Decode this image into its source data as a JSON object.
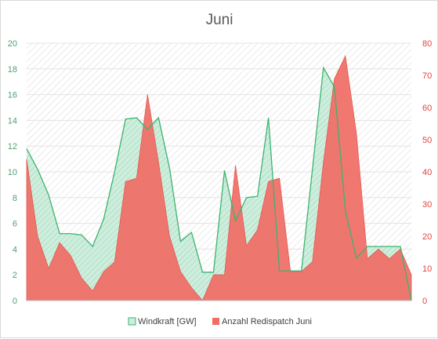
{
  "chart_data": {
    "type": "area",
    "title": "Juni",
    "n_points": 36,
    "series": [
      {
        "name": "Windkraft [GW]",
        "axis": "left",
        "color": "#3cb371",
        "fill": "#cdeedd",
        "values": [
          11.8,
          10.2,
          8.2,
          5.2,
          5.2,
          5.1,
          4.2,
          6.3,
          10.0,
          14.1,
          14.2,
          13.3,
          14.2,
          10.3,
          4.6,
          5.3,
          2.2,
          2.2,
          10.1,
          6.2,
          8.0,
          8.1,
          14.2,
          2.3,
          2.3,
          2.3,
          10.2,
          18.1,
          16.6,
          7.0,
          3.3,
          4.2,
          4.2,
          4.2,
          4.2,
          0.0
        ]
      },
      {
        "name": "Anzahl Redispatch Juni",
        "axis": "right",
        "color": "#f06c64",
        "values": [
          44,
          20,
          10,
          18,
          14,
          7,
          3,
          9,
          12,
          37,
          38,
          64,
          43,
          20,
          9,
          4,
          0,
          8,
          8,
          42,
          17,
          22,
          37,
          38,
          9,
          9,
          12,
          43,
          69,
          76,
          52,
          13,
          16,
          13,
          16,
          8
        ]
      }
    ],
    "y_left": {
      "min": 0,
      "max": 20,
      "ticks": [
        "0",
        "2",
        "4",
        "6",
        "8",
        "10",
        "12",
        "14",
        "16",
        "18",
        "20"
      ]
    },
    "y_right": {
      "min": 0,
      "max": 80,
      "ticks": [
        "0",
        "10",
        "20",
        "30",
        "40",
        "50",
        "60",
        "70",
        "80"
      ]
    },
    "grid": true,
    "legend_position": "bottom"
  },
  "colors": {
    "wind_line": "#3cb371",
    "wind_fill": "#cdeedd",
    "redispatch": "#f06c64",
    "left_axis_text": "#4f9f72",
    "right_axis_text": "#e0433e",
    "grid": "#e3e3e3",
    "hatch": "#d0d0d0"
  }
}
